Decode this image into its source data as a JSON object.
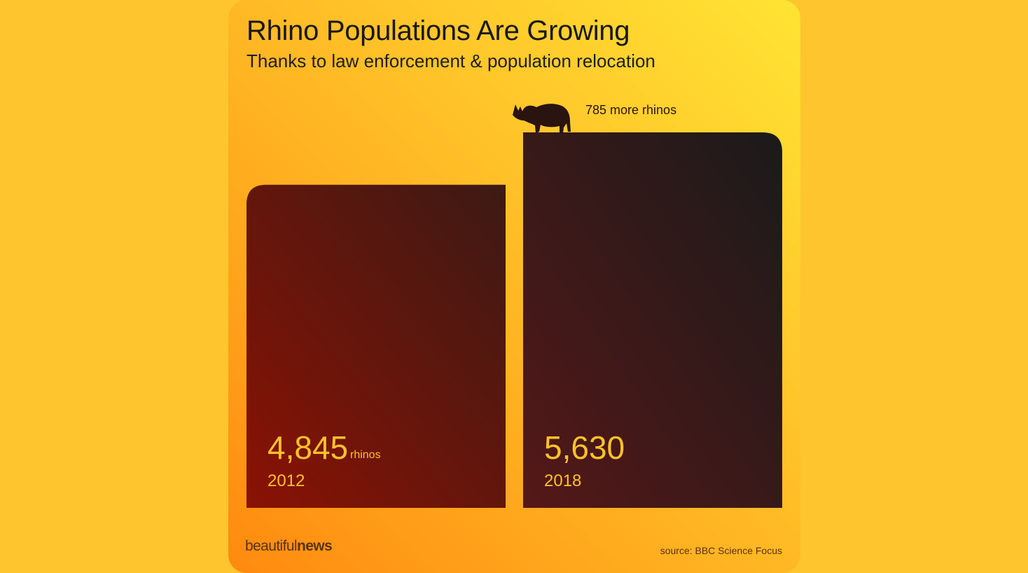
{
  "title": "Rhino Populations Are Growing",
  "subtitle": "Thanks to law enforcement & population relocation",
  "chart_data": {
    "type": "bar",
    "categories": [
      "2012",
      "2018"
    ],
    "values": [
      4845,
      5630
    ],
    "value_labels": [
      "4,845",
      "5,630"
    ],
    "unit_label": "rhinos",
    "annotation": "785 more rhinos",
    "ylim": [
      0,
      5630
    ],
    "grid": false,
    "legend": "none",
    "bar_colors": {
      "2012": [
        "#8a1204",
        "#3c1a14"
      ],
      "2018": [
        "#551818",
        "#1b1a1a"
      ]
    },
    "label_color": "#ffc12a"
  },
  "footer": {
    "brand_light": "beautiful",
    "brand_bold": "news",
    "source": "source: BBC Science Focus"
  },
  "icons": {
    "annotation_icon": "rhino-icon"
  }
}
